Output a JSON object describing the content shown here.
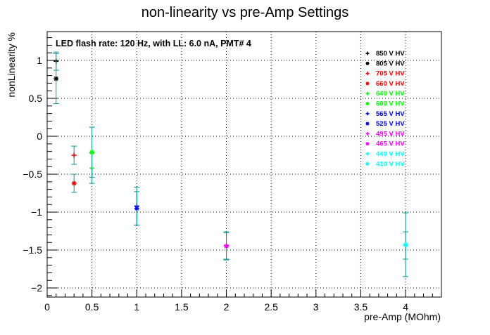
{
  "chart_data": {
    "type": "scatter",
    "title": "non-linearity vs pre-Amp Settings",
    "annotation": "LED flash rate: 120 Hz, with LL: 6.0 nA, PMT# 4",
    "xlabel": "pre-Amp (MOhm)",
    "ylabel": "nonLinearity %",
    "xlim": [
      0,
      4.4
    ],
    "ylim": [
      -2.12,
      1.38
    ],
    "xticks": [
      "0",
      "0.5",
      "1",
      "1.5",
      "2",
      "2.5",
      "3",
      "3.5",
      "4"
    ],
    "yticks": [
      "1",
      "0.5",
      "0",
      "−0.5",
      "−1",
      "−1.5",
      "−2"
    ],
    "grid": true,
    "legend_position": "top-right",
    "series": [
      {
        "name": "850 V HV",
        "marker": "plus",
        "color": "#000000",
        "points": [
          {
            "x": 0.1,
            "y": 0.99,
            "err": 0.12
          }
        ]
      },
      {
        "name": "805 V HV",
        "marker": "star",
        "color": "#000000",
        "points": [
          {
            "x": 0.1,
            "y": 0.76,
            "err": 0.33
          }
        ]
      },
      {
        "name": "705 V HV",
        "marker": "plus",
        "color": "#ff0000",
        "points": [
          {
            "x": 0.3,
            "y": -0.25,
            "err": 0.12
          }
        ]
      },
      {
        "name": "660 V HV",
        "marker": "star",
        "color": "#ff0000",
        "points": [
          {
            "x": 0.3,
            "y": -0.62,
            "err": 0.12
          }
        ]
      },
      {
        "name": "640 V HV",
        "marker": "plus",
        "color": "#00ff00",
        "points": [
          {
            "x": 0.5,
            "y": -0.42,
            "err": 0.2
          }
        ]
      },
      {
        "name": "600 V HV",
        "marker": "star",
        "color": "#00ff00",
        "points": [
          {
            "x": 0.5,
            "y": -0.21,
            "err": 0.33
          }
        ]
      },
      {
        "name": "565 V HV",
        "marker": "plus",
        "color": "#0000ff",
        "points": [
          {
            "x": 1.0,
            "y": -0.92,
            "err": 0.25
          }
        ]
      },
      {
        "name": "525 V HV",
        "marker": "star",
        "color": "#0000ff",
        "points": [
          {
            "x": 1.0,
            "y": -0.95,
            "err": 0.22
          }
        ]
      },
      {
        "name": "495 V HV",
        "marker": "plus",
        "color": "#ff00ff",
        "points": [
          {
            "x": 2.0,
            "y": -1.44,
            "err": 0.18
          }
        ]
      },
      {
        "name": "465 V HV",
        "marker": "star",
        "color": "#ff00ff",
        "points": [
          {
            "x": 2.0,
            "y": -1.45,
            "err": 0.18
          }
        ]
      },
      {
        "name": "440 V HV",
        "marker": "plus",
        "color": "#00ffff",
        "points": [
          {
            "x": 4.0,
            "y": -1.44,
            "err": 0.18
          }
        ]
      },
      {
        "name": "410 V HV",
        "marker": "star",
        "color": "#00ffff",
        "points": [
          {
            "x": 4.0,
            "y": -1.43,
            "err": 0.42
          }
        ]
      }
    ]
  }
}
